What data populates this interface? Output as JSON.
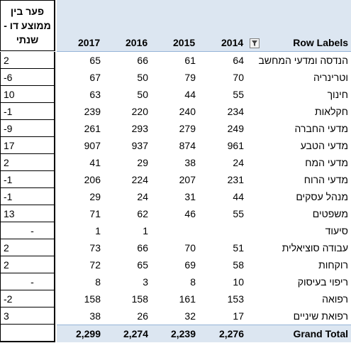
{
  "diff_header": [
    "פער בין",
    "ממוצע דו -",
    "שנתי"
  ],
  "pivot_header": {
    "row_labels": "Row Labels",
    "years": [
      "2017",
      "2016",
      "2015",
      "2014"
    ]
  },
  "rows": [
    {
      "label": "הנדסה ומדעי המחשב",
      "y2017": "65",
      "y2016": "66",
      "y2015": "61",
      "y2014": "64",
      "diff": "2"
    },
    {
      "label": "וטרינריה",
      "y2017": "67",
      "y2016": "50",
      "y2015": "79",
      "y2014": "70",
      "diff": "-6"
    },
    {
      "label": "חינוך",
      "y2017": "63",
      "y2016": "50",
      "y2015": "44",
      "y2014": "55",
      "diff": "10"
    },
    {
      "label": "חקלאות",
      "y2017": "239",
      "y2016": "220",
      "y2015": "240",
      "y2014": "234",
      "diff": "-1"
    },
    {
      "label": "מדעי החברה",
      "y2017": "261",
      "y2016": "293",
      "y2015": "279",
      "y2014": "249",
      "diff": "-9"
    },
    {
      "label": "מדעי הטבע",
      "y2017": "907",
      "y2016": "937",
      "y2015": "874",
      "y2014": "961",
      "diff": "17"
    },
    {
      "label": "מדעי המח",
      "y2017": "41",
      "y2016": "29",
      "y2015": "38",
      "y2014": "24",
      "diff": "2"
    },
    {
      "label": "מדעי הרוח",
      "y2017": "206",
      "y2016": "224",
      "y2015": "207",
      "y2014": "231",
      "diff": "-1"
    },
    {
      "label": "מנהל עסקים",
      "y2017": "29",
      "y2016": "24",
      "y2015": "31",
      "y2014": "44",
      "diff": "-1"
    },
    {
      "label": "משפטים",
      "y2017": "71",
      "y2016": "62",
      "y2015": "46",
      "y2014": "55",
      "diff": "13"
    },
    {
      "label": "סיעוד",
      "y2017": "1",
      "y2016": "1",
      "y2015": "",
      "y2014": "",
      "diff": "-"
    },
    {
      "label": "עבודה סוציאלית",
      "y2017": "73",
      "y2016": "66",
      "y2015": "70",
      "y2014": "51",
      "diff": "2"
    },
    {
      "label": "רוקחות",
      "y2017": "72",
      "y2016": "65",
      "y2015": "69",
      "y2014": "58",
      "diff": "2"
    },
    {
      "label": "ריפוי בעיסוק",
      "y2017": "8",
      "y2016": "3",
      "y2015": "8",
      "y2014": "10",
      "diff": "-"
    },
    {
      "label": "רפואה",
      "y2017": "158",
      "y2016": "158",
      "y2015": "161",
      "y2014": "153",
      "diff": "-2"
    },
    {
      "label": "רפואת שיניים",
      "y2017": "38",
      "y2016": "26",
      "y2015": "32",
      "y2014": "17",
      "diff": "3"
    }
  ],
  "grand_total": {
    "label": "Grand Total",
    "y2017": "2,299",
    "y2016": "2,274",
    "y2015": "2,239",
    "y2014": "2,276",
    "diff": ""
  },
  "colors": {
    "header_fill": "#dce6f1",
    "header_border": "#95b3d7"
  },
  "icons": {
    "filter": "filter-icon"
  }
}
